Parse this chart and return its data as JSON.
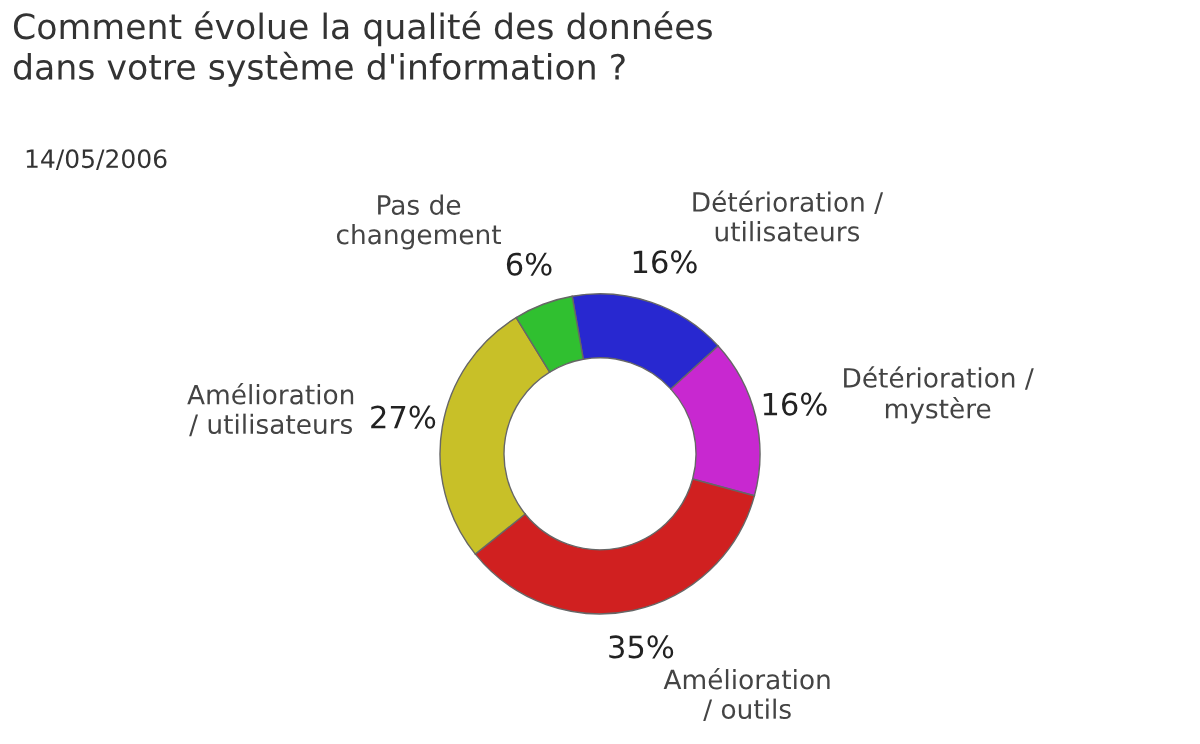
{
  "chart_data": {
    "type": "donut",
    "title": "Comment évolue la qualité des données\ndans votre système d'information ?",
    "subtitle": "14/05/2006",
    "categories": [
      "Détérioration /\nutilisateurs",
      "Détérioration /\nmystère",
      "Amélioration\n/ outils",
      "Amélioration\n/ utilisateurs",
      "Pas de\nchangement"
    ],
    "values": [
      16,
      16,
      35,
      27,
      6
    ],
    "value_labels": [
      "16%",
      "16%",
      "35%",
      "27%",
      "6%"
    ],
    "colors": [
      "#2828d0",
      "#c828d0",
      "#d02020",
      "#c8c028",
      "#30c030"
    ],
    "legend": false
  }
}
